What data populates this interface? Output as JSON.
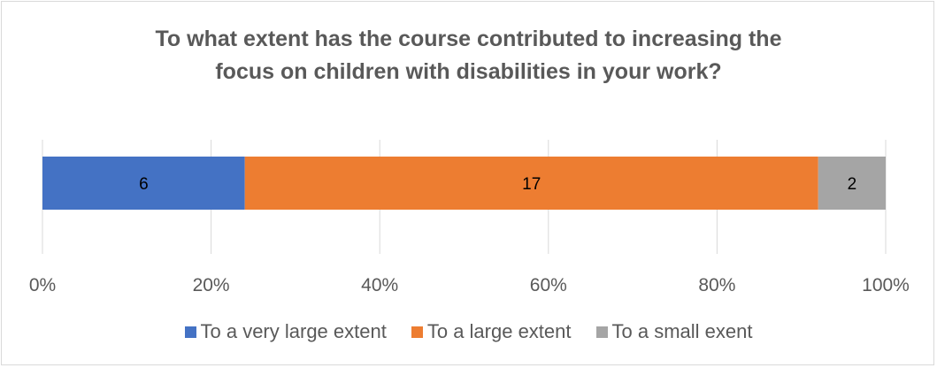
{
  "chart_data": {
    "type": "bar",
    "orientation": "horizontal",
    "stacked": "100%",
    "title_lines": [
      "To what extent has the course contributed to increasing the",
      "focus on children with disabilities in your work?"
    ],
    "xlim": [
      0,
      100
    ],
    "x_ticks": [
      "0%",
      "20%",
      "40%",
      "60%",
      "80%",
      "100%"
    ],
    "grid": true,
    "legend_position": "bottom",
    "series": [
      {
        "name": "To a very large extent",
        "value": 6,
        "color": "#4472c4"
      },
      {
        "name": "To a large extent",
        "value": 17,
        "color": "#ed7d31"
      },
      {
        "name": "To a small exent",
        "value": 2,
        "color": "#a5a5a5"
      }
    ]
  }
}
